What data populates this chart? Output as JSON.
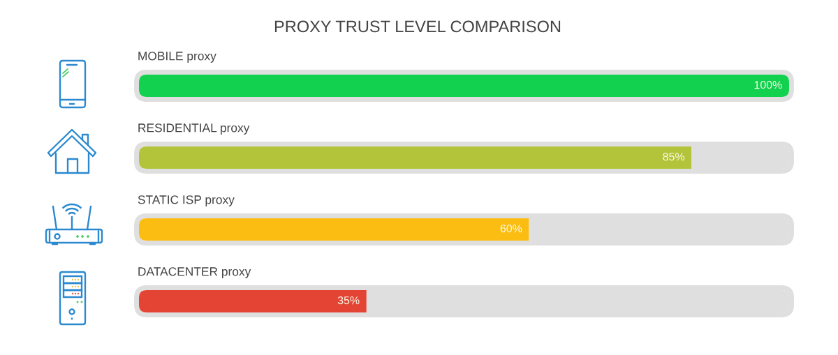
{
  "chart_data": {
    "type": "bar",
    "orientation": "horizontal",
    "stacked": true,
    "title": "PROXY TRUST LEVEL COMPARISON",
    "categories": [
      "MOBILE proxy",
      "RESIDENTIAL proxy",
      "STATIC ISP proxy",
      "DATACENTER proxy"
    ],
    "series": [
      {
        "colors": [
          "#12d14f",
          "#b3c43a",
          "#fbbd12",
          "#e44434"
        ],
        "values": [
          100,
          85,
          60,
          35
        ],
        "value_labels": [
          "100%",
          "85%",
          "60%",
          "35%"
        ]
      },
      {
        "color": "#dfdfdf",
        "values": [
          0,
          15,
          40,
          65
        ]
      }
    ],
    "xlim": [
      0,
      100
    ],
    "tick_labels": "y"
  }
}
